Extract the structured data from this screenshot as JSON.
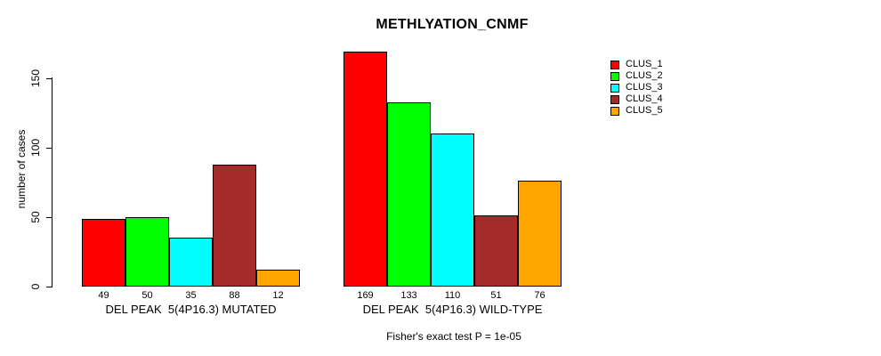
{
  "title": "METHLYATION_CNMF",
  "y_axis": {
    "label": "number of cases",
    "tick_labels": [
      "0",
      "50",
      "100",
      "150"
    ]
  },
  "footer": "Fisher's exact test P = 1e-05",
  "chart_data": {
    "type": "bar",
    "title": "METHLYATION_CNMF",
    "xlabel": "",
    "ylabel": "number of cases",
    "ylim": [
      0,
      175
    ],
    "yticks": [
      0,
      50,
      100,
      150
    ],
    "grid": false,
    "legend_position": "right",
    "bar_borders": "#000000",
    "series_names": [
      "CLUS_1",
      "CLUS_2",
      "CLUS_3",
      "CLUS_4",
      "CLUS_5"
    ],
    "series_colors": [
      "#FF0000",
      "#00FF00",
      "#00FFFF",
      "#A52A2A",
      "#FFA500"
    ],
    "groups": [
      {
        "label": "DEL PEAK  5(4P16.3) MUTATED",
        "values": [
          49,
          50,
          35,
          88,
          12
        ]
      },
      {
        "label": "DEL PEAK  5(4P16.3) WILD-TYPE",
        "values": [
          169,
          133,
          110,
          51,
          76
        ]
      }
    ],
    "bar_value_labels_shown": true,
    "annotation": "Fisher's exact test P = 1e-05"
  }
}
